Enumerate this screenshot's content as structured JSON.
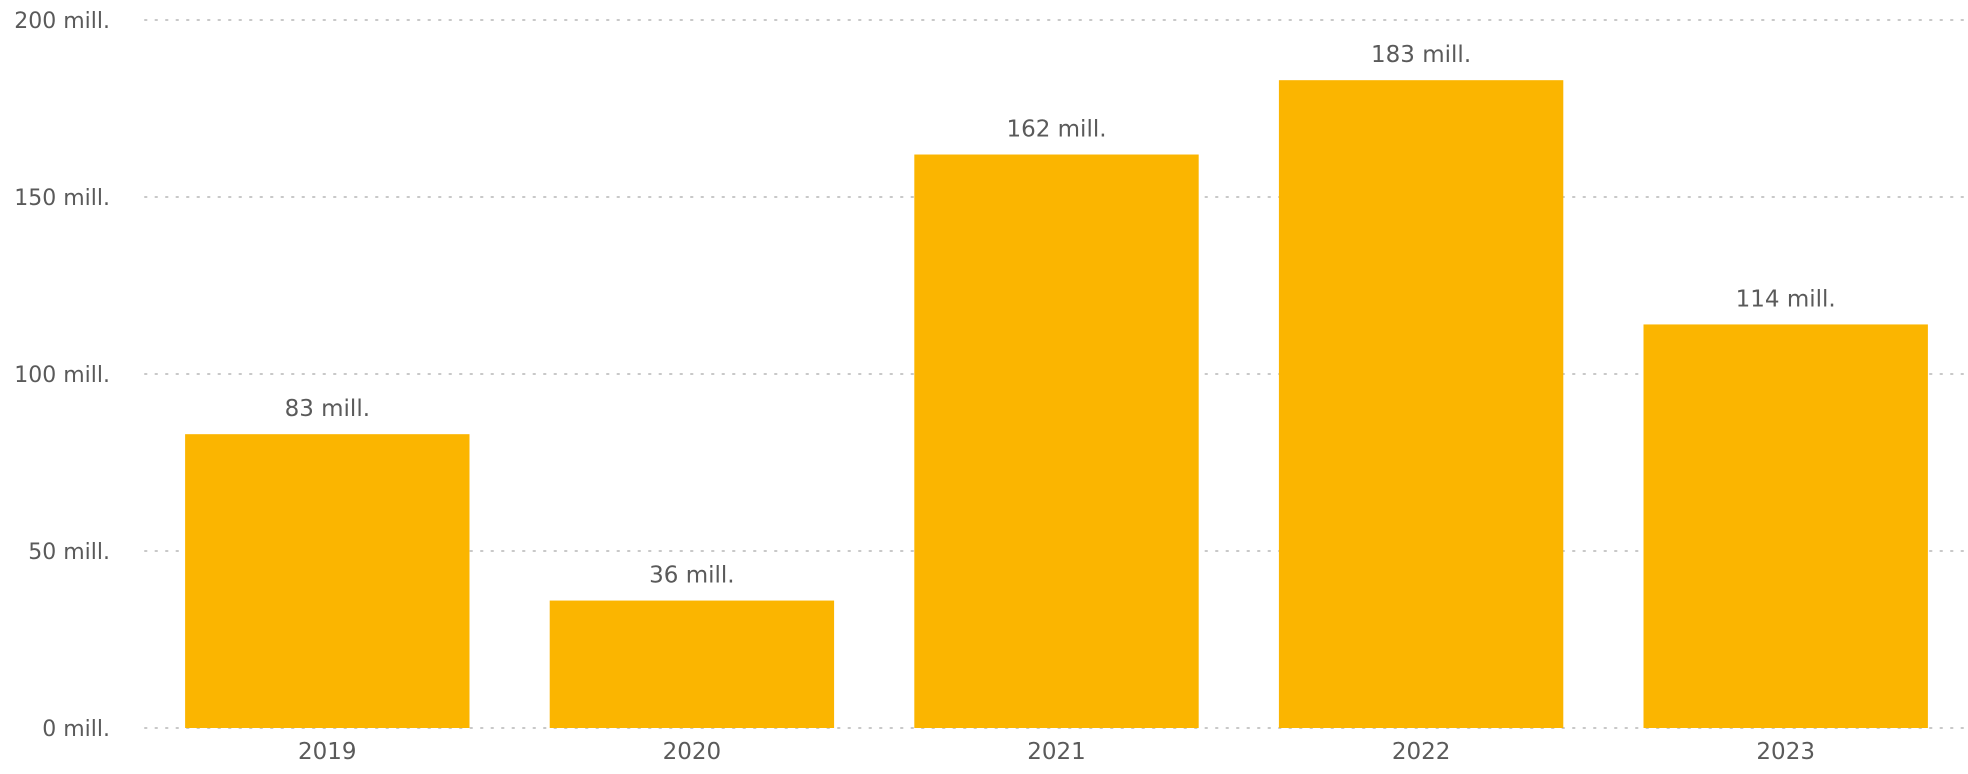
{
  "chart_data": {
    "type": "bar",
    "categories": [
      "2019",
      "2020",
      "2021",
      "2022",
      "2023"
    ],
    "values": [
      83,
      36,
      162,
      183,
      114
    ],
    "data_labels": [
      "83 mill.",
      "36 mill.",
      "162 mill.",
      "183 mill.",
      "114 mill."
    ],
    "title": "",
    "xlabel": "",
    "ylabel": "",
    "ylim": [
      0,
      200
    ],
    "y_ticks": [
      {
        "value": 0,
        "label": "0 mill."
      },
      {
        "value": 50,
        "label": "50 mill."
      },
      {
        "value": 100,
        "label": "100 mill."
      },
      {
        "value": 150,
        "label": "150 mill."
      },
      {
        "value": 200,
        "label": "200 mill."
      }
    ],
    "grid": true,
    "legend": "none",
    "bar_color": "#FBB500"
  }
}
